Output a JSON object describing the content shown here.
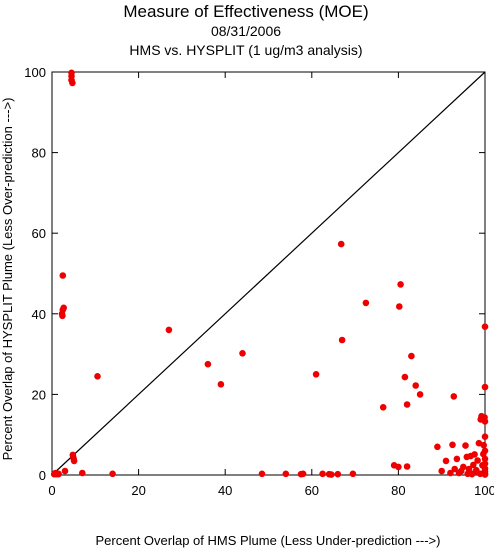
{
  "chart_data": {
    "type": "scatter",
    "title": "Measure of Effectiveness (MOE)",
    "subtitle_date": "08/31/2006",
    "subtitle_analysis": "HMS vs. HYSPLIT  (1 ug/m3 analysis)",
    "xlabel": "Percent Overlap of HMS Plume (Less Under-prediction --->)",
    "ylabel": "Percent Overlap of HYSPLIT Plume (Less Over-prediction --->)",
    "xlim": [
      0,
      100
    ],
    "ylim": [
      0,
      100
    ],
    "xticks": [
      "0",
      "20",
      "40",
      "60",
      "80",
      "100"
    ],
    "yticks": [
      "0",
      "20",
      "40",
      "60",
      "80",
      "100"
    ],
    "reference_line": "y = x",
    "grid": false,
    "colors": {
      "points": "#ee0000",
      "line": "#000000",
      "axes": "#000000"
    },
    "points": [
      [
        0.5,
        0.2
      ],
      [
        1,
        0.2
      ],
      [
        1.5,
        0.3
      ],
      [
        3,
        1
      ],
      [
        7,
        0.5
      ],
      [
        14,
        0.3
      ],
      [
        1.5,
        0.2
      ],
      [
        0.8,
        0.5
      ],
      [
        4.5,
        99.8
      ],
      [
        4.5,
        99
      ],
      [
        4.5,
        98
      ],
      [
        4.7,
        97.3
      ],
      [
        2.5,
        49.5
      ],
      [
        2.7,
        41.5
      ],
      [
        2.5,
        41
      ],
      [
        2.3,
        40
      ],
      [
        2.4,
        39.5
      ],
      [
        4.8,
        5
      ],
      [
        4.9,
        4.5
      ],
      [
        5,
        4
      ],
      [
        5.1,
        3.5
      ],
      [
        10.5,
        24.5
      ],
      [
        27,
        36
      ],
      [
        36,
        27.5
      ],
      [
        39,
        22.5
      ],
      [
        44,
        30.2
      ],
      [
        48.5,
        0.3
      ],
      [
        54,
        0.3
      ],
      [
        57.5,
        0.2
      ],
      [
        58,
        0.3
      ],
      [
        62.5,
        0.3
      ],
      [
        64,
        0.2
      ],
      [
        64.5,
        0.1
      ],
      [
        66,
        0.2
      ],
      [
        69.5,
        0.3
      ],
      [
        61,
        25
      ],
      [
        66.8,
        57.3
      ],
      [
        67,
        33.5
      ],
      [
        72.5,
        42.7
      ],
      [
        76.5,
        16.8
      ],
      [
        79,
        2.4
      ],
      [
        80,
        2
      ],
      [
        82,
        2.1
      ],
      [
        80.5,
        47.3
      ],
      [
        80.2,
        41.8
      ],
      [
        81.5,
        24.3
      ],
      [
        82,
        17.5
      ],
      [
        83,
        29.5
      ],
      [
        84,
        22.2
      ],
      [
        85,
        20
      ],
      [
        89,
        7
      ],
      [
        90,
        1
      ],
      [
        91,
        3.5
      ],
      [
        92,
        0.5
      ],
      [
        92.5,
        7.5
      ],
      [
        92.8,
        19.5
      ],
      [
        93,
        1.5
      ],
      [
        93.5,
        4
      ],
      [
        94,
        0.5
      ],
      [
        94.5,
        1
      ],
      [
        95,
        2
      ],
      [
        95.5,
        7.3
      ],
      [
        95.8,
        4.5
      ],
      [
        96,
        0.3
      ],
      [
        96.3,
        1.5
      ],
      [
        96.7,
        4.7
      ],
      [
        97,
        0.2
      ],
      [
        97.3,
        2.5
      ],
      [
        97.6,
        5.1
      ],
      [
        97.8,
        0.8
      ],
      [
        98,
        1.2
      ],
      [
        98.3,
        3.6
      ],
      [
        98.6,
        7.9
      ],
      [
        98.9,
        0.3
      ],
      [
        99,
        13.8
      ],
      [
        99.2,
        14.6
      ],
      [
        99.4,
        2.4
      ],
      [
        99.6,
        5.2
      ],
      [
        99.7,
        7.4
      ],
      [
        99.8,
        0.6
      ],
      [
        99.9,
        14.3
      ],
      [
        100,
        36.8
      ],
      [
        100,
        21.8
      ],
      [
        100,
        13.3
      ],
      [
        100,
        9.5
      ],
      [
        100,
        6
      ],
      [
        100,
        4
      ],
      [
        100,
        2.8
      ],
      [
        100,
        1.6
      ],
      [
        100,
        0.9
      ],
      [
        100,
        0.4
      ],
      [
        100,
        0.1
      ]
    ]
  }
}
